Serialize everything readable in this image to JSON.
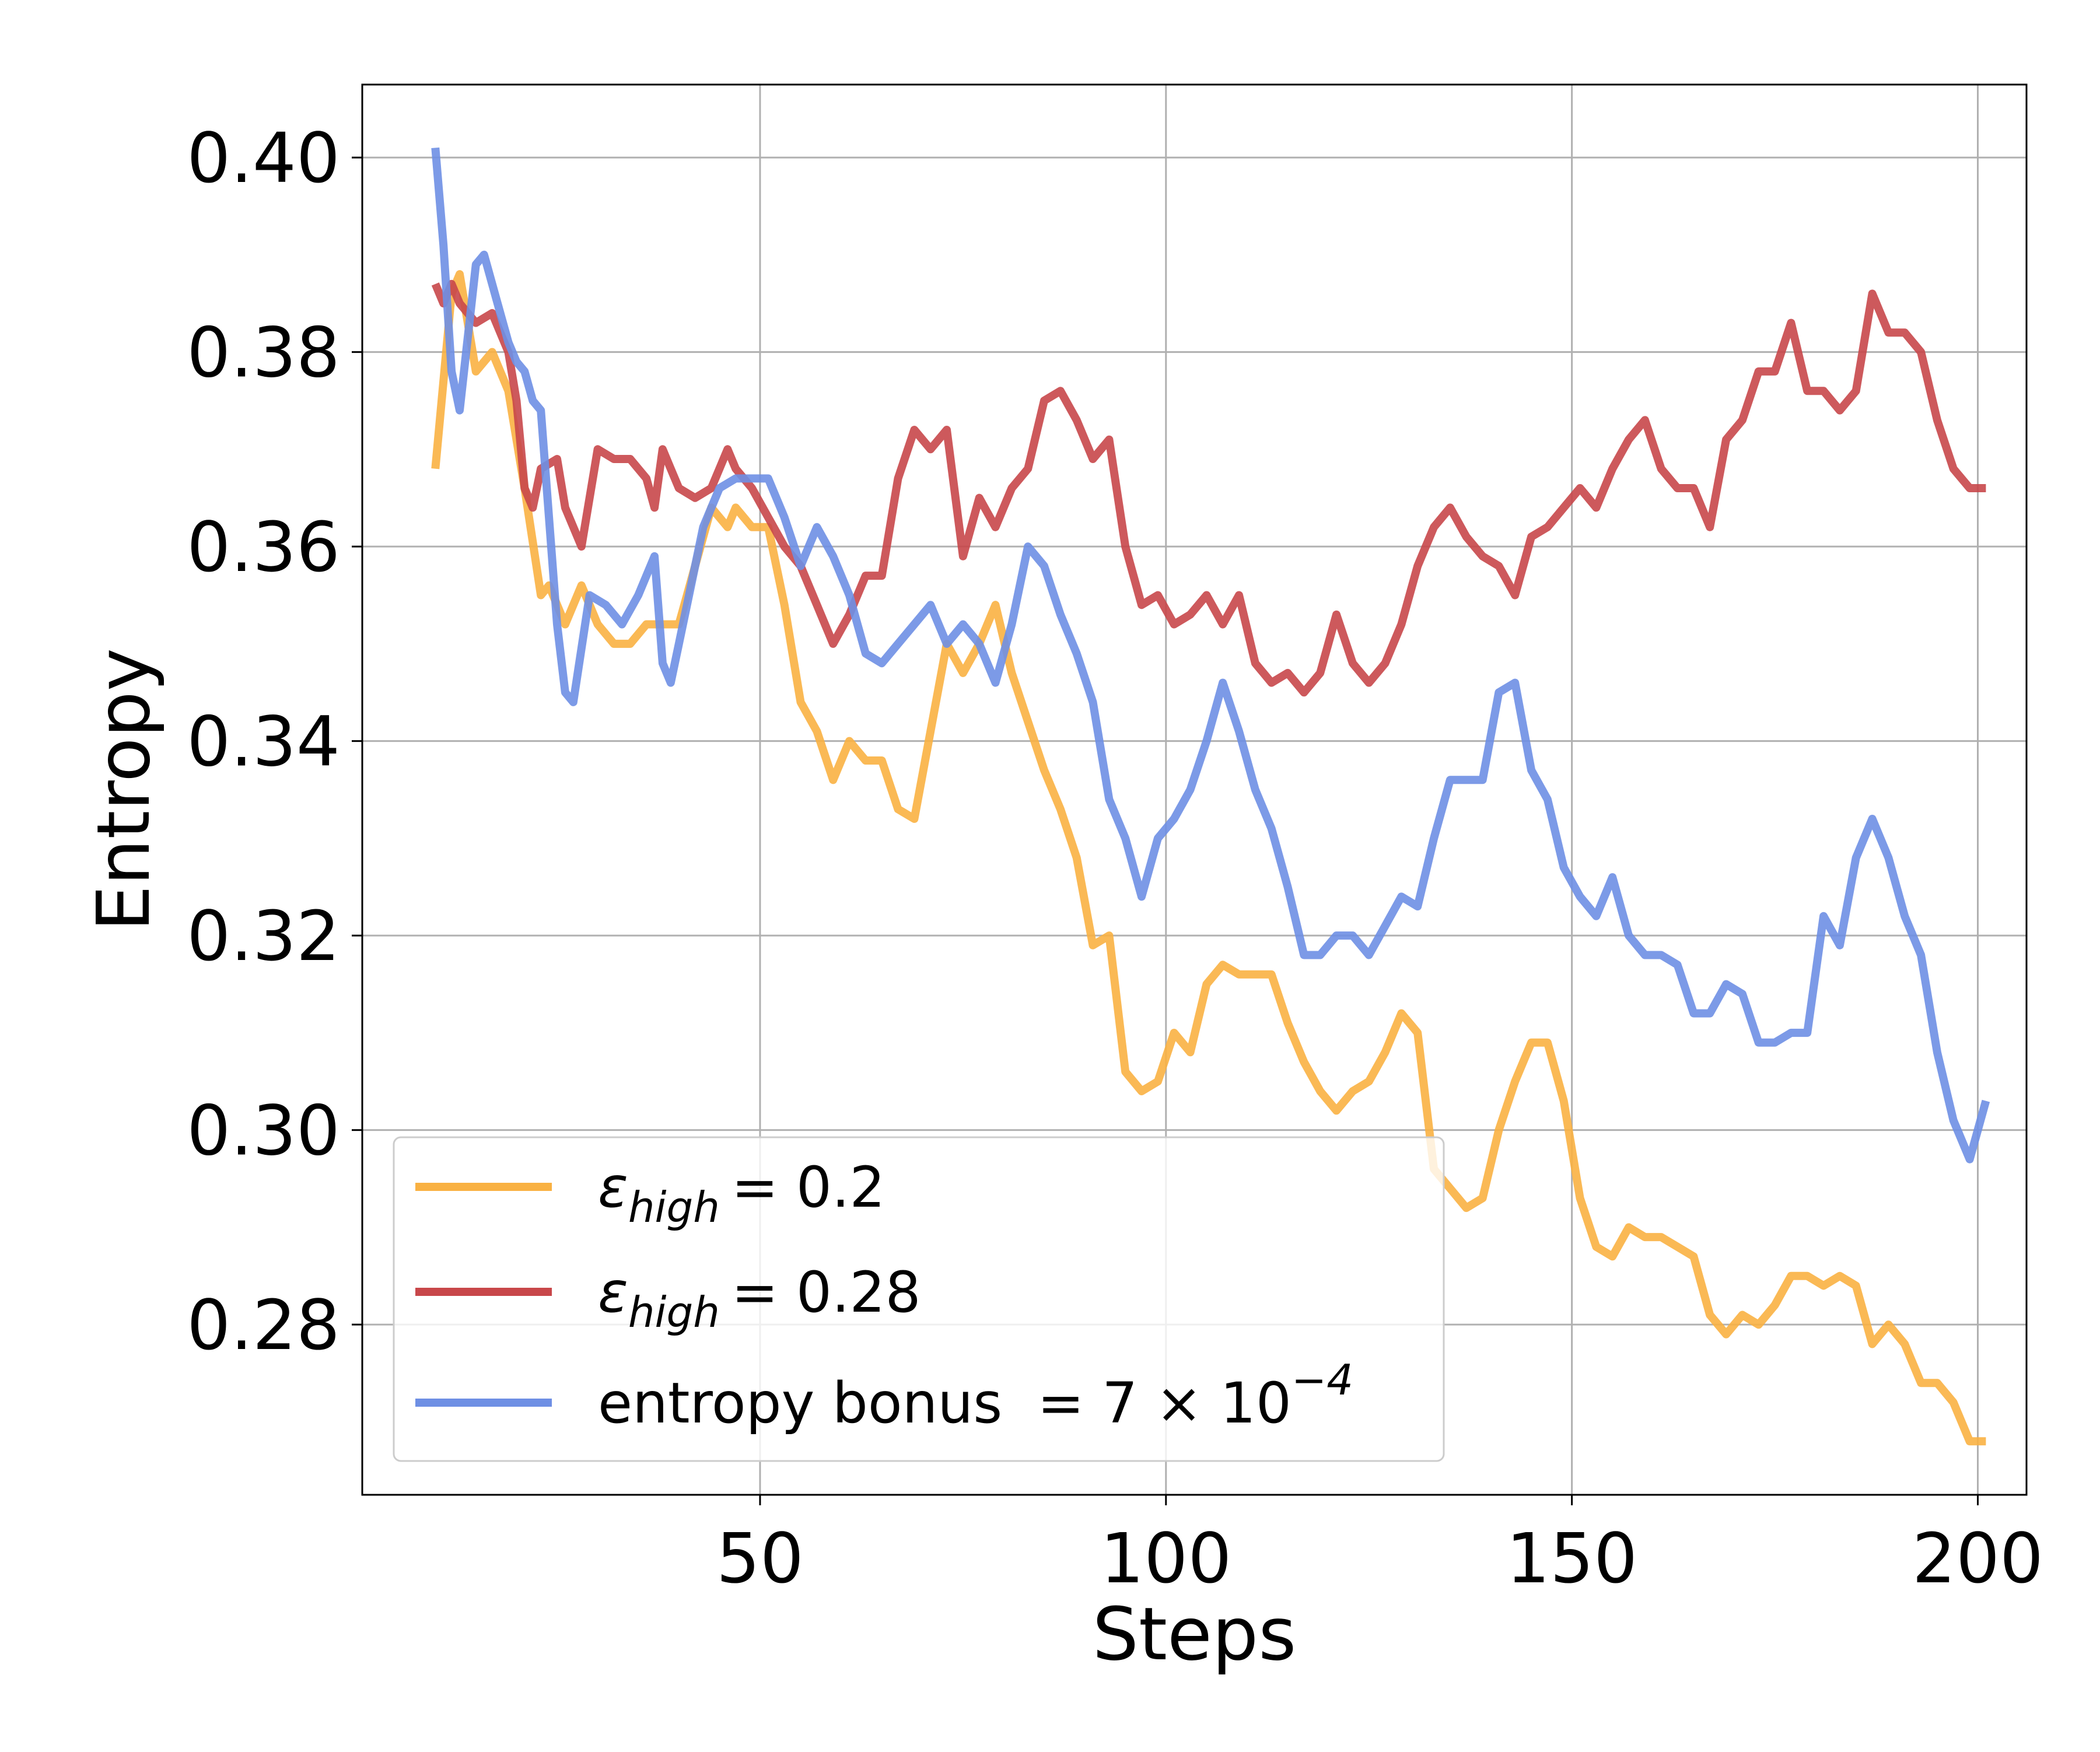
{
  "chart_data": {
    "type": "line",
    "title": "",
    "xlabel": "Steps",
    "ylabel": "Entropy",
    "xlim": [
      1,
      206
    ],
    "ylim": [
      0.2625,
      0.4075
    ],
    "x_ticks": [
      50,
      100,
      150,
      200
    ],
    "x_tick_labels": [
      "50",
      "100",
      "150",
      "200"
    ],
    "y_ticks": [
      0.28,
      0.3,
      0.32,
      0.34,
      0.36,
      0.38,
      0.4
    ],
    "y_tick_labels": [
      "0.28",
      "0.30",
      "0.32",
      "0.34",
      "0.36",
      "0.38",
      "0.40"
    ],
    "grid": true,
    "legend_position": "lower-left",
    "colors": {
      "e02": "#F9B142",
      "e028": "#C8474A",
      "bonus": "#6E8FE4"
    },
    "legend": [
      {
        "key": "e02",
        "symbol": "ε",
        "subscript": "high",
        "value": "= 0.2"
      },
      {
        "key": "e028",
        "symbol": "ε",
        "subscript": "high",
        "value": "= 0.28"
      },
      {
        "key": "bonus",
        "text": "entropy bonus",
        "value": "= 7 × 10",
        "exponent": "−4"
      }
    ],
    "series": [
      {
        "key": "e02",
        "x": [
          10,
          12,
          13,
          15,
          17,
          19,
          21,
          23,
          24,
          26,
          28,
          30,
          32,
          34,
          36,
          38,
          40,
          42,
          44,
          46,
          47,
          49,
          51,
          53,
          55,
          57,
          59,
          61,
          63,
          65,
          67,
          69,
          71,
          73,
          75,
          77,
          79,
          81,
          83,
          85,
          87,
          89,
          91,
          93,
          95,
          97,
          99,
          101,
          103,
          105,
          107,
          109,
          111,
          113,
          115,
          117,
          119,
          121,
          123,
          125,
          127,
          129,
          131,
          133,
          135,
          137,
          139,
          141,
          143,
          145,
          147,
          149,
          151,
          153,
          155,
          157,
          159,
          161,
          163,
          165,
          167,
          169,
          171,
          173,
          175,
          177,
          179,
          181,
          183,
          185,
          187,
          189,
          191,
          193,
          195,
          197,
          199,
          201
        ],
        "y": [
          0.368,
          0.386,
          0.388,
          0.378,
          0.38,
          0.376,
          0.366,
          0.355,
          0.356,
          0.352,
          0.356,
          0.352,
          0.35,
          0.35,
          0.352,
          0.352,
          0.352,
          0.358,
          0.364,
          0.362,
          0.364,
          0.362,
          0.362,
          0.354,
          0.344,
          0.341,
          0.336,
          0.34,
          0.338,
          0.338,
          0.333,
          0.332,
          0.341,
          0.35,
          0.347,
          0.35,
          0.354,
          0.347,
          0.342,
          0.337,
          0.333,
          0.328,
          0.319,
          0.32,
          0.306,
          0.304,
          0.305,
          0.31,
          0.308,
          0.315,
          0.317,
          0.316,
          0.316,
          0.316,
          0.311,
          0.307,
          0.304,
          0.302,
          0.304,
          0.305,
          0.308,
          0.312,
          0.31,
          0.296,
          0.294,
          0.292,
          0.293,
          0.3,
          0.305,
          0.309,
          0.309,
          0.303,
          0.293,
          0.288,
          0.287,
          0.29,
          0.289,
          0.289,
          0.288,
          0.287,
          0.281,
          0.279,
          0.281,
          0.28,
          0.282,
          0.285,
          0.285,
          0.284,
          0.285,
          0.284,
          0.278,
          0.28,
          0.278,
          0.274,
          0.274,
          0.272,
          0.268,
          0.268
        ]
      },
      {
        "key": "e028",
        "x": [
          10,
          11,
          12,
          13,
          15,
          17,
          19,
          20,
          21,
          22,
          23,
          25,
          26,
          28,
          30,
          32,
          34,
          36,
          37,
          38,
          39,
          40,
          42,
          44,
          46,
          47,
          49,
          51,
          53,
          55,
          57,
          59,
          61,
          63,
          65,
          67,
          69,
          71,
          73,
          75,
          77,
          79,
          81,
          83,
          85,
          87,
          89,
          91,
          93,
          95,
          97,
          99,
          101,
          103,
          105,
          107,
          109,
          111,
          113,
          115,
          117,
          119,
          121,
          123,
          125,
          127,
          129,
          131,
          133,
          135,
          137,
          139,
          141,
          143,
          145,
          147,
          149,
          151,
          153,
          155,
          157,
          159,
          161,
          163,
          165,
          167,
          169,
          171,
          173,
          175,
          177,
          179,
          181,
          183,
          185,
          187,
          189,
          191,
          193,
          195,
          197,
          199,
          201
        ],
        "y": [
          0.387,
          0.385,
          0.387,
          0.385,
          0.383,
          0.384,
          0.38,
          0.375,
          0.366,
          0.364,
          0.368,
          0.369,
          0.364,
          0.36,
          0.37,
          0.369,
          0.369,
          0.367,
          0.364,
          0.37,
          0.368,
          0.366,
          0.365,
          0.366,
          0.37,
          0.368,
          0.366,
          0.363,
          0.36,
          0.358,
          0.354,
          0.35,
          0.353,
          0.357,
          0.357,
          0.367,
          0.372,
          0.37,
          0.372,
          0.359,
          0.365,
          0.362,
          0.366,
          0.368,
          0.375,
          0.376,
          0.373,
          0.369,
          0.371,
          0.36,
          0.354,
          0.355,
          0.352,
          0.353,
          0.355,
          0.352,
          0.355,
          0.348,
          0.346,
          0.347,
          0.345,
          0.347,
          0.353,
          0.348,
          0.346,
          0.348,
          0.352,
          0.358,
          0.362,
          0.364,
          0.361,
          0.359,
          0.358,
          0.355,
          0.361,
          0.362,
          0.364,
          0.366,
          0.364,
          0.368,
          0.371,
          0.373,
          0.368,
          0.366,
          0.366,
          0.362,
          0.371,
          0.373,
          0.378,
          0.378,
          0.383,
          0.376,
          0.376,
          0.374,
          0.376,
          0.386,
          0.382,
          0.382,
          0.38,
          0.373,
          0.368,
          0.366,
          0.366
        ]
      },
      {
        "key": "bonus",
        "x": [
          10,
          11,
          12,
          13,
          15,
          16,
          17,
          19,
          20,
          21,
          22,
          23,
          24,
          25,
          26,
          27,
          29,
          31,
          33,
          35,
          37,
          38,
          39,
          40,
          41,
          43,
          45,
          47,
          49,
          51,
          53,
          55,
          57,
          59,
          61,
          63,
          65,
          67,
          69,
          71,
          73,
          75,
          77,
          79,
          81,
          83,
          85,
          87,
          89,
          91,
          93,
          95,
          97,
          99,
          101,
          103,
          105,
          107,
          109,
          111,
          113,
          115,
          117,
          119,
          121,
          123,
          125,
          127,
          129,
          131,
          133,
          135,
          137,
          139,
          141,
          143,
          145,
          147,
          149,
          151,
          153,
          155,
          157,
          159,
          161,
          163,
          165,
          167,
          169,
          171,
          173,
          175,
          177,
          179,
          181,
          183,
          185,
          187,
          189,
          191,
          193,
          195,
          197,
          199,
          201
        ],
        "y": [
          0.401,
          0.391,
          0.378,
          0.374,
          0.389,
          0.39,
          0.387,
          0.381,
          0.379,
          0.378,
          0.375,
          0.374,
          0.363,
          0.352,
          0.345,
          0.344,
          0.355,
          0.354,
          0.352,
          0.355,
          0.359,
          0.348,
          0.346,
          0.35,
          0.354,
          0.362,
          0.366,
          0.367,
          0.367,
          0.367,
          0.363,
          0.358,
          0.362,
          0.359,
          0.355,
          0.349,
          0.348,
          0.35,
          0.352,
          0.354,
          0.35,
          0.352,
          0.35,
          0.346,
          0.352,
          0.36,
          0.358,
          0.353,
          0.349,
          0.344,
          0.334,
          0.33,
          0.324,
          0.33,
          0.332,
          0.335,
          0.34,
          0.346,
          0.341,
          0.335,
          0.331,
          0.325,
          0.318,
          0.318,
          0.32,
          0.32,
          0.318,
          0.321,
          0.324,
          0.323,
          0.33,
          0.336,
          0.336,
          0.336,
          0.345,
          0.346,
          0.337,
          0.334,
          0.327,
          0.324,
          0.322,
          0.326,
          0.32,
          0.318,
          0.318,
          0.317,
          0.312,
          0.312,
          0.315,
          0.314,
          0.309,
          0.309,
          0.31,
          0.31,
          0.322,
          0.319,
          0.328,
          0.332,
          0.328,
          0.322,
          0.318,
          0.308,
          0.301,
          0.297,
          0.303
        ]
      }
    ]
  }
}
